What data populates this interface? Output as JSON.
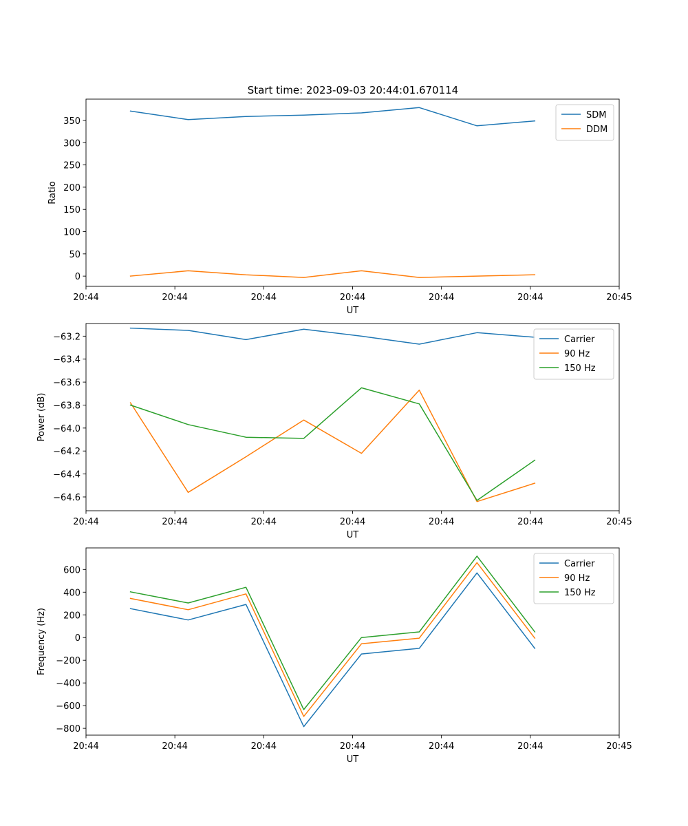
{
  "figure_title": "Start time: 2023-09-03 20:44:01.670114",
  "colors": {
    "blue": "#1f77b4",
    "orange": "#ff7f0e",
    "green": "#2ca02c"
  },
  "chart_data": [
    {
      "type": "line",
      "title": "Start time: 2023-09-03 20:44:01.670114",
      "xlabel": "UT",
      "ylabel": "Ratio",
      "xlim": [
        0,
        6
      ],
      "ylim": [
        -23,
        398
      ],
      "xticks": [
        0,
        1,
        2,
        3,
        4,
        5,
        6
      ],
      "xtick_labels": [
        "20:44",
        "20:44",
        "20:44",
        "20:44",
        "20:44",
        "20:44",
        "20:45"
      ],
      "yticks": [
        0,
        50,
        100,
        150,
        200,
        250,
        300,
        350
      ],
      "ytick_labels": [
        "0",
        "50",
        "100",
        "150",
        "200",
        "250",
        "300",
        "350"
      ],
      "x": [
        0.5,
        1.15,
        1.8,
        2.45,
        3.1,
        3.75,
        4.4,
        5.05
      ],
      "legend": "top-right",
      "series": [
        {
          "name": "SDM",
          "color": "#1f77b4",
          "values": [
            371,
            352,
            359,
            362,
            367,
            379,
            338,
            349
          ]
        },
        {
          "name": "DDM",
          "color": "#ff7f0e",
          "values": [
            0,
            12,
            3,
            -3,
            12,
            -3,
            0,
            3
          ]
        }
      ]
    },
    {
      "type": "line",
      "title": "",
      "xlabel": "UT",
      "ylabel": "Power (dB)",
      "xlim": [
        0,
        6
      ],
      "ylim": [
        -64.72,
        -63.09
      ],
      "xticks": [
        0,
        1,
        2,
        3,
        4,
        5,
        6
      ],
      "xtick_labels": [
        "20:44",
        "20:44",
        "20:44",
        "20:44",
        "20:44",
        "20:44",
        "20:45"
      ],
      "yticks": [
        -63.2,
        -63.4,
        -63.6,
        -63.8,
        -64.0,
        -64.2,
        -64.4,
        -64.6
      ],
      "ytick_labels": [
        "−63.2",
        "−63.4",
        "−63.6",
        "−63.8",
        "−64.0",
        "−64.2",
        "−64.4",
        "−64.6"
      ],
      "x": [
        0.5,
        1.15,
        1.8,
        2.45,
        3.1,
        3.75,
        4.4,
        5.05
      ],
      "legend": "top-right",
      "series": [
        {
          "name": "Carrier",
          "color": "#1f77b4",
          "values": [
            -63.13,
            -63.15,
            -63.23,
            -63.14,
            -63.2,
            -63.27,
            -63.17,
            -63.21
          ]
        },
        {
          "name": "90 Hz",
          "color": "#ff7f0e",
          "values": [
            -63.78,
            -64.56,
            -64.25,
            -63.93,
            -64.22,
            -63.67,
            -64.64,
            -64.48
          ]
        },
        {
          "name": "150 Hz",
          "color": "#2ca02c",
          "values": [
            -63.8,
            -63.97,
            -64.08,
            -64.09,
            -63.65,
            -63.79,
            -64.63,
            -64.28
          ]
        }
      ]
    },
    {
      "type": "line",
      "title": "",
      "xlabel": "UT",
      "ylabel": "Frequency (Hz)",
      "xlim": [
        0,
        6
      ],
      "ylim": [
        -860,
        790
      ],
      "xticks": [
        0,
        1,
        2,
        3,
        4,
        5,
        6
      ],
      "xtick_labels": [
        "20:44",
        "20:44",
        "20:44",
        "20:44",
        "20:44",
        "20:44",
        "20:45"
      ],
      "yticks": [
        600,
        400,
        200,
        0,
        -200,
        -400,
        -600,
        -800
      ],
      "ytick_labels": [
        "600",
        "400",
        "200",
        "0",
        "−200",
        "−400",
        "−600",
        "−800"
      ],
      "x": [
        0.5,
        1.15,
        1.8,
        2.45,
        3.1,
        3.75,
        4.4,
        5.05
      ],
      "legend": "top-right",
      "series": [
        {
          "name": "Carrier",
          "color": "#1f77b4",
          "values": [
            255,
            155,
            292,
            -785,
            -145,
            -95,
            570,
            -95
          ]
        },
        {
          "name": "90 Hz",
          "color": "#ff7f0e",
          "values": [
            345,
            245,
            385,
            -695,
            -55,
            -5,
            660,
            -5
          ]
        },
        {
          "name": "150 Hz",
          "color": "#2ca02c",
          "values": [
            403,
            305,
            443,
            -635,
            0,
            50,
            718,
            50
          ]
        }
      ]
    }
  ]
}
